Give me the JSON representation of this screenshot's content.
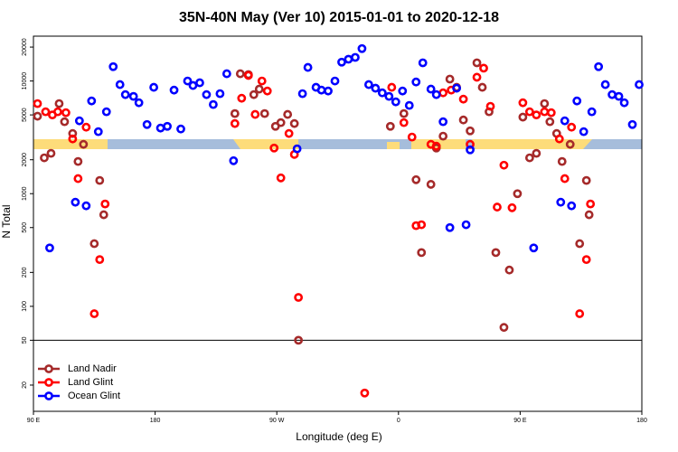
{
  "chart_data": {
    "type": "scatter",
    "title": "35N-40N May (Ver 10)   2015-01-01 to 2020-12-18",
    "x_label": "Longitude (deg E)",
    "y_label": "N Total",
    "log_y": true,
    "legend": "lower left",
    "hline": 50,
    "xlim": [
      90,
      540
    ],
    "xticks": [
      {
        "value": 90,
        "label": "90 E"
      },
      180,
      {
        "value": 270,
        "label": "90 W"
      },
      {
        "value": 360,
        "label": "0"
      },
      {
        "value": 450,
        "label": "90 E"
      },
      {
        "value": 540,
        "label": "180"
      }
    ],
    "ylim": [
      11.7,
      25000
    ],
    "yticks": [
      20,
      50,
      100,
      200,
      500,
      1000,
      2000,
      5000,
      10000,
      20000
    ],
    "series": [
      {
        "name": "Land Nadir",
        "color": "#a52a2a",
        "x": [
          93,
          98,
          103,
          109,
          113,
          119,
          123,
          127,
          135,
          139,
          142,
          239,
          243,
          249,
          253,
          257,
          261,
          269,
          273,
          278,
          283,
          286,
          354,
          364,
          373,
          377,
          384,
          388,
          393,
          398,
          403,
          408,
          413,
          418,
          422,
          427,
          432,
          438,
          442,
          448,
          452,
          457,
          462,
          468,
          472,
          477,
          481,
          487,
          494,
          499,
          501
        ],
        "values": [
          4870,
          2080,
          2280,
          6300,
          4350,
          3420,
          1930,
          2740,
          360,
          1310,
          650,
          5140,
          11600,
          11400,
          7570,
          8470,
          5140,
          3960,
          4270,
          5050,
          4190,
          50,
          3960,
          5140,
          1330,
          300,
          1210,
          2540,
          3240,
          10400,
          8790,
          4510,
          3610,
          14500,
          8790,
          5330,
          300,
          65,
          210,
          1000,
          4780,
          2080,
          2280,
          6300,
          4350,
          3420,
          1930,
          2740,
          360,
          1310,
          650
        ]
      },
      {
        "name": "Land Glint",
        "color": "#ff0000",
        "x": [
          93,
          99,
          104,
          108,
          114,
          119,
          123,
          129,
          135,
          139,
          143,
          239,
          244,
          249,
          254,
          259,
          263,
          268,
          273,
          279,
          283,
          286,
          335,
          355,
          364,
          370,
          373,
          377,
          384,
          388,
          393,
          399,
          408,
          413,
          418,
          423,
          428,
          433,
          438,
          444,
          452,
          457,
          462,
          468,
          473,
          479,
          483,
          488,
          494,
          499,
          502
        ],
        "values": [
          6300,
          5330,
          5000,
          5330,
          5230,
          3060,
          1360,
          3890,
          86,
          260,
          810,
          4190,
          7030,
          11200,
          5050,
          10000,
          8150,
          2540,
          1380,
          3420,
          2230,
          120,
          17,
          8790,
          4270,
          3180,
          520,
          530,
          2740,
          2640,
          7850,
          8300,
          6900,
          2740,
          10800,
          13000,
          5960,
          760,
          1790,
          750,
          6410,
          5330,
          5000,
          5330,
          5230,
          3060,
          1360,
          3890,
          86,
          260,
          810
        ]
      },
      {
        "name": "Ocean Glint",
        "color": "#0000ff",
        "x": [
          102,
          121,
          124,
          129,
          133,
          138,
          144,
          149,
          154,
          158,
          164,
          168,
          174,
          179,
          184,
          189,
          194,
          199,
          204,
          208,
          213,
          218,
          223,
          228,
          233,
          238,
          285,
          289,
          293,
          299,
          303,
          308,
          313,
          318,
          323,
          328,
          333,
          338,
          343,
          348,
          353,
          358,
          363,
          368,
          373,
          378,
          384,
          388,
          393,
          398,
          403,
          410,
          413,
          460,
          480,
          483,
          488,
          492,
          497,
          503,
          508,
          513,
          518,
          523,
          527,
          533,
          538
        ],
        "values": [
          330,
          840,
          4430,
          780,
          6650,
          3550,
          5330,
          13400,
          9290,
          7570,
          7300,
          6410,
          4110,
          8790,
          3820,
          3960,
          8300,
          3750,
          10000,
          9120,
          9640,
          7570,
          6180,
          7720,
          11600,
          1960,
          2500,
          7720,
          13200,
          8790,
          8300,
          8150,
          10000,
          14700,
          15600,
          16200,
          19400,
          9290,
          8630,
          7850,
          7300,
          6530,
          8150,
          6070,
          9800,
          14500,
          8470,
          7570,
          4350,
          500,
          8630,
          530,
          2450,
          330,
          840,
          4430,
          780,
          6650,
          3550,
          5330,
          13400,
          9290,
          7570,
          7300,
          6410,
          4110,
          9290
        ]
      }
    ]
  }
}
